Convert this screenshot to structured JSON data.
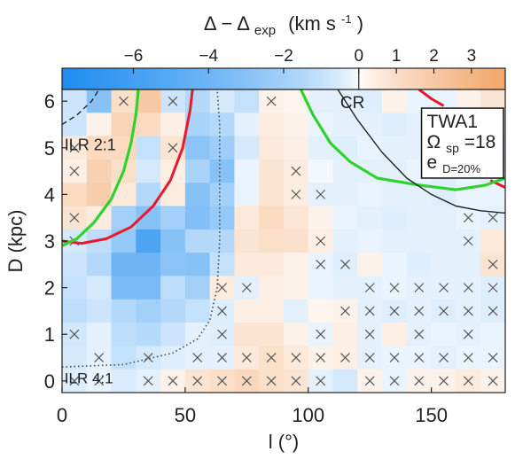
{
  "chart_data": {
    "type": "heatmap",
    "title": "",
    "colorbar": {
      "label_main": "Δ − Δ",
      "label_sub": "exp",
      "label_unit": "(km s",
      "label_unit_sup": "-1",
      "label_close": ")",
      "range": [
        -7.9,
        3.9
      ],
      "ticks": [
        -6,
        -4,
        -2,
        0,
        1,
        2,
        3
      ],
      "tick_labels": [
        "−6",
        "−4",
        "−2",
        "0",
        "1",
        "2",
        "3"
      ],
      "colors": {
        "negative": "#1e8cf0",
        "zero": "#ffffff",
        "positive": "#f2a66a"
      }
    },
    "xlabel": "l (°)",
    "ylabel": "D (kpc)",
    "xlim": [
      0,
      180
    ],
    "ylim": [
      -0.25,
      6.25
    ],
    "xticks": [
      0,
      50,
      100,
      150
    ],
    "yticks": [
      0,
      1,
      2,
      3,
      4,
      5,
      6
    ],
    "cell_size": {
      "dl": 10,
      "dD": 0.5
    },
    "l_centers": [
      5,
      15,
      25,
      35,
      45,
      55,
      65,
      75,
      85,
      95,
      105,
      115,
      125,
      135,
      145,
      155,
      165,
      175
    ],
    "D_centers": [
      6,
      5.5,
      5,
      4.5,
      4,
      3.5,
      3,
      2.5,
      2,
      1.5,
      1,
      0.5,
      0
    ],
    "values": [
      [
        -0.8,
        -3.0,
        1.0,
        2.0,
        -0.8,
        -1.5,
        -0.6,
        -1.0,
        0.3,
        0.2,
        -0.3,
        -0.3,
        -0.4,
        0.3,
        -0.2,
        -0.2,
        0.3,
        0.8
      ],
      [
        -0.8,
        0.3,
        1.5,
        1.2,
        0.4,
        -1.8,
        -1.5,
        -0.3,
        0.5,
        0.3,
        -0.2,
        -0.3,
        -0.3,
        -0.4,
        -0.3,
        -0.4,
        -0.3,
        -0.2
      ],
      [
        0.6,
        1.2,
        1.2,
        -1.0,
        0.8,
        -2.8,
        -2.2,
        -0.6,
        0.6,
        0.4,
        -0.3,
        -0.4,
        -0.2,
        -0.3,
        -0.3,
        -0.3,
        -0.4,
        -0.6
      ],
      [
        0.4,
        1.6,
        1.0,
        -0.6,
        0.4,
        -1.8,
        -3.0,
        -0.2,
        0.8,
        0.5,
        -0.1,
        -0.3,
        -0.3,
        -0.3,
        -0.2,
        -0.4,
        -0.2,
        -0.4
      ],
      [
        1.2,
        1.8,
        0.6,
        -1.5,
        0.5,
        -3.0,
        -2.0,
        -0.2,
        0.8,
        0.5,
        -0.3,
        -0.3,
        -0.2,
        -0.3,
        -0.3,
        -0.4,
        -0.2,
        -0.2
      ],
      [
        0.8,
        0.5,
        -2.0,
        -3.0,
        -2.0,
        -3.2,
        -2.5,
        0.6,
        1.2,
        0.7,
        0.3,
        -0.2,
        -0.3,
        -0.4,
        -0.3,
        -0.3,
        -0.2,
        -0.3
      ],
      [
        -0.6,
        -1.2,
        -2.5,
        -5.5,
        -3.0,
        -1.5,
        -1.5,
        0.8,
        1.0,
        0.9,
        0.4,
        -0.3,
        -0.2,
        -0.3,
        -0.3,
        -0.3,
        -0.3,
        0.6
      ],
      [
        -0.8,
        -1.5,
        -4.0,
        -4.0,
        -2.8,
        -3.0,
        -1.0,
        0.6,
        0.6,
        0.3,
        -0.2,
        -0.4,
        0.3,
        -0.2,
        -0.4,
        -0.3,
        -0.3,
        0.8
      ],
      [
        -1.0,
        -0.6,
        -3.5,
        -3.5,
        -1.2,
        -2.0,
        0.5,
        -0.3,
        0.4,
        0.3,
        -0.2,
        -0.3,
        -0.3,
        -0.2,
        -0.3,
        -0.3,
        -0.3,
        -0.4
      ],
      [
        -1.2,
        -0.8,
        -1.5,
        -2.0,
        -1.5,
        -1.0,
        -0.4,
        0.4,
        0.4,
        -0.3,
        0.2,
        0.3,
        -0.3,
        -0.4,
        -0.3,
        -0.4,
        -0.3,
        -0.4
      ],
      [
        -0.7,
        -0.3,
        -1.2,
        -1.4,
        -0.8,
        -0.3,
        -0.4,
        0.8,
        0.8,
        0.3,
        -0.2,
        0.4,
        -0.3,
        0.4,
        -0.3,
        -0.2,
        -0.3,
        -0.2
      ],
      [
        -0.6,
        -0.3,
        -1.0,
        -0.6,
        -0.4,
        -0.3,
        -0.3,
        0.6,
        1.0,
        0.6,
        0.3,
        0.4,
        -0.3,
        -0.2,
        -0.2,
        -0.3,
        -0.2,
        -0.2
      ],
      [
        -0.4,
        -0.2,
        -0.5,
        -0.3,
        0.3,
        0.8,
        1.0,
        1.3,
        1.0,
        0.8,
        -0.3,
        -0.6,
        0.3,
        -0.2,
        0.3,
        0.3,
        0.5,
        0.3
      ]
    ],
    "crosses": [
      [
        25,
        6
      ],
      [
        45,
        6
      ],
      [
        85,
        6
      ],
      [
        45,
        5
      ],
      [
        5,
        5
      ],
      [
        5,
        4.5
      ],
      [
        95,
        4.5
      ],
      [
        95,
        4
      ],
      [
        105,
        4
      ],
      [
        5,
        3.5
      ],
      [
        165,
        3.5
      ],
      [
        175,
        3.5
      ],
      [
        5,
        3
      ],
      [
        105,
        3
      ],
      [
        165,
        3
      ],
      [
        105,
        2.5
      ],
      [
        115,
        2.5
      ],
      [
        175,
        2.5
      ],
      [
        65,
        2
      ],
      [
        75,
        2
      ],
      [
        125,
        2
      ],
      [
        135,
        2
      ],
      [
        145,
        2
      ],
      [
        155,
        2
      ],
      [
        165,
        2
      ],
      [
        175,
        2
      ],
      [
        65,
        1.5
      ],
      [
        115,
        1.5
      ],
      [
        125,
        1.5
      ],
      [
        135,
        1.5
      ],
      [
        145,
        1.5
      ],
      [
        155,
        1.5
      ],
      [
        165,
        1.5
      ],
      [
        175,
        1.5
      ],
      [
        5,
        1
      ],
      [
        65,
        1
      ],
      [
        105,
        1
      ],
      [
        125,
        1
      ],
      [
        145,
        1
      ],
      [
        165,
        1
      ],
      [
        15,
        0.5
      ],
      [
        35,
        0.5
      ],
      [
        55,
        0.5
      ],
      [
        65,
        0.5
      ],
      [
        75,
        0.5
      ],
      [
        85,
        0.5
      ],
      [
        95,
        0.5
      ],
      [
        105,
        0.5
      ],
      [
        115,
        0.5
      ],
      [
        125,
        0.5
      ],
      [
        135,
        0.5
      ],
      [
        145,
        0.5
      ],
      [
        155,
        0.5
      ],
      [
        165,
        0.5
      ],
      [
        175,
        0.5
      ],
      [
        5,
        0
      ],
      [
        15,
        0
      ],
      [
        35,
        0
      ],
      [
        45,
        0
      ],
      [
        55,
        0
      ],
      [
        65,
        0
      ],
      [
        75,
        0
      ],
      [
        85,
        0
      ],
      [
        95,
        0
      ],
      [
        105,
        0
      ],
      [
        125,
        0
      ],
      [
        135,
        0
      ],
      [
        145,
        0
      ],
      [
        155,
        0
      ],
      [
        165,
        0
      ],
      [
        175,
        0
      ]
    ],
    "curves": {
      "red": [
        [
          [
            0,
            3.0
          ],
          [
            8,
            2.95
          ],
          [
            18,
            3.05
          ],
          [
            28,
            3.3
          ],
          [
            37,
            3.75
          ],
          [
            44,
            4.3
          ],
          [
            49,
            5.0
          ],
          [
            52,
            5.8
          ],
          [
            53,
            6.25
          ]
        ],
        [
          [
            145,
            6.25
          ],
          [
            150,
            6.05
          ],
          [
            155,
            5.9
          ]
        ],
        [
          [
            174,
            4.3
          ],
          [
            180,
            4.15
          ]
        ]
      ],
      "green": [
        [
          [
            0,
            2.9
          ],
          [
            6,
            3.05
          ],
          [
            13,
            3.4
          ],
          [
            20,
            3.9
          ],
          [
            25,
            4.5
          ],
          [
            28,
            5.1
          ],
          [
            30,
            5.7
          ],
          [
            31,
            6.25
          ]
        ],
        [
          [
            97,
            6.25
          ],
          [
            102,
            5.7
          ],
          [
            109,
            5.1
          ],
          [
            117,
            4.7
          ],
          [
            128,
            4.35
          ],
          [
            145,
            4.2
          ],
          [
            160,
            4.1
          ],
          [
            172,
            4.2
          ],
          [
            180,
            4.35
          ]
        ]
      ],
      "black": [
        [
          [
            112,
            6.25
          ],
          [
            120,
            5.6
          ],
          [
            130,
            4.9
          ],
          [
            140,
            4.35
          ],
          [
            150,
            4.0
          ],
          [
            160,
            3.75
          ],
          [
            170,
            3.65
          ],
          [
            180,
            3.6
          ]
        ]
      ],
      "dashed": [
        [
          [
            0,
            5.5
          ],
          [
            6,
            5.7
          ],
          [
            12,
            6.0
          ],
          [
            15,
            6.25
          ]
        ]
      ],
      "dotted": [
        [
          [
            0,
            0.3
          ],
          [
            25,
            0.35
          ],
          [
            45,
            0.6
          ],
          [
            55,
            0.9
          ],
          [
            60,
            1.3
          ],
          [
            63,
            2.0
          ],
          [
            64,
            3.0
          ],
          [
            64,
            4.5
          ],
          [
            64,
            5.5
          ],
          [
            63,
            6.25
          ]
        ]
      ]
    },
    "annotations": {
      "cr": "CR",
      "ilr21": "ILR 2:1",
      "ilr41": "ILR 4:1"
    },
    "legend_box": {
      "line1": "TWA1",
      "omega": "Ω",
      "omega_sub": "sp",
      "omega_value": "=18",
      "e": "e",
      "e_sub": "D=20%"
    }
  }
}
